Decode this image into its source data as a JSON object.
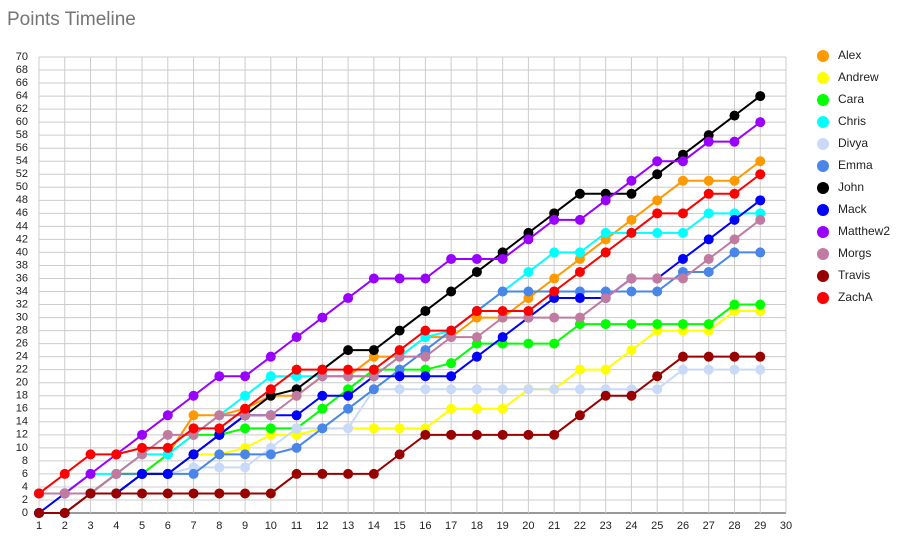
{
  "chart_data": {
    "type": "line",
    "title": "Points Timeline",
    "x": [
      1,
      2,
      3,
      4,
      5,
      6,
      7,
      8,
      9,
      10,
      11,
      12,
      13,
      14,
      15,
      16,
      17,
      18,
      19,
      20,
      21,
      22,
      23,
      24,
      25,
      26,
      27,
      28,
      29
    ],
    "xlim": [
      1,
      30
    ],
    "xticks": [
      1,
      2,
      3,
      4,
      5,
      6,
      7,
      8,
      9,
      10,
      11,
      12,
      13,
      14,
      15,
      16,
      17,
      18,
      19,
      20,
      21,
      22,
      23,
      24,
      25,
      26,
      27,
      28,
      29,
      30
    ],
    "ylim": [
      0,
      70
    ],
    "yticks": [
      0,
      2,
      4,
      6,
      8,
      10,
      12,
      14,
      16,
      18,
      20,
      22,
      24,
      26,
      28,
      30,
      32,
      34,
      36,
      38,
      40,
      42,
      44,
      46,
      48,
      50,
      52,
      54,
      56,
      58,
      60,
      62,
      64,
      66,
      68,
      70
    ],
    "grid": true,
    "legend": "right",
    "series": [
      {
        "name": "Alex",
        "color": "#ff9900",
        "values": [
          3,
          3,
          3,
          6,
          6,
          9,
          15,
          15,
          16,
          18,
          18,
          21,
          21,
          24,
          24,
          27,
          27,
          30,
          30,
          33,
          36,
          39,
          42,
          45,
          48,
          51,
          51,
          51,
          54
        ]
      },
      {
        "name": "Andrew",
        "color": "#ffff00",
        "values": [
          3,
          3,
          3,
          3,
          6,
          6,
          9,
          9,
          10,
          12,
          12,
          13,
          13,
          13,
          13,
          13,
          16,
          16,
          16,
          19,
          19,
          22,
          22,
          25,
          28,
          28,
          28,
          31,
          31
        ]
      },
      {
        "name": "Cara",
        "color": "#00ff00",
        "values": [
          3,
          3,
          3,
          6,
          6,
          9,
          12,
          12,
          13,
          13,
          13,
          16,
          19,
          22,
          22,
          22,
          23,
          26,
          26,
          26,
          26,
          29,
          29,
          29,
          29,
          29,
          29,
          32,
          32
        ]
      },
      {
        "name": "Chris",
        "color": "#00ffff",
        "values": [
          3,
          3,
          6,
          6,
          9,
          9,
          12,
          15,
          18,
          21,
          21,
          21,
          21,
          21,
          24,
          27,
          28,
          31,
          34,
          37,
          40,
          40,
          43,
          43,
          43,
          43,
          46,
          46,
          46
        ]
      },
      {
        "name": "Divya",
        "color": "#c9daf8",
        "values": [
          3,
          3,
          3,
          3,
          6,
          6,
          7,
          7,
          7,
          10,
          13,
          13,
          13,
          19,
          19,
          19,
          19,
          19,
          19,
          19,
          19,
          19,
          19,
          19,
          19,
          22,
          22,
          22,
          22
        ]
      },
      {
        "name": "Emma",
        "color": "#4a86e8",
        "values": [
          3,
          3,
          3,
          6,
          6,
          6,
          6,
          9,
          9,
          9,
          10,
          13,
          16,
          19,
          22,
          25,
          28,
          31,
          34,
          34,
          34,
          34,
          34,
          34,
          34,
          37,
          37,
          40,
          40
        ]
      },
      {
        "name": "John",
        "color": "#000000",
        "values": [
          0,
          0,
          3,
          3,
          6,
          6,
          9,
          12,
          15,
          18,
          19,
          22,
          25,
          25,
          28,
          31,
          34,
          37,
          40,
          43,
          46,
          49,
          49,
          49,
          52,
          55,
          58,
          61,
          64
        ]
      },
      {
        "name": "Mack",
        "color": "#0000ff",
        "values": [
          0,
          3,
          3,
          3,
          6,
          6,
          9,
          12,
          15,
          15,
          15,
          18,
          18,
          21,
          21,
          21,
          21,
          24,
          27,
          30,
          33,
          33,
          33,
          36,
          36,
          39,
          42,
          45,
          48
        ]
      },
      {
        "name": "Matthew2",
        "color": "#9900ff",
        "values": [
          3,
          3,
          6,
          9,
          12,
          15,
          18,
          21,
          21,
          24,
          27,
          30,
          33,
          36,
          36,
          36,
          39,
          39,
          39,
          42,
          45,
          45,
          48,
          51,
          54,
          54,
          57,
          57,
          60
        ]
      },
      {
        "name": "Morgs",
        "color": "#c27ba0",
        "values": [
          3,
          3,
          3,
          6,
          9,
          12,
          12,
          15,
          15,
          15,
          18,
          21,
          21,
          21,
          24,
          24,
          27,
          27,
          30,
          30,
          30,
          30,
          33,
          36,
          36,
          36,
          39,
          42,
          45
        ]
      },
      {
        "name": "Travis",
        "color": "#990000",
        "values": [
          0,
          0,
          3,
          3,
          3,
          3,
          3,
          3,
          3,
          3,
          6,
          6,
          6,
          6,
          9,
          12,
          12,
          12,
          12,
          12,
          12,
          15,
          18,
          18,
          21,
          24,
          24,
          24,
          24
        ]
      },
      {
        "name": "ZachA",
        "color": "#ff0000",
        "values": [
          3,
          6,
          9,
          9,
          10,
          10,
          13,
          13,
          16,
          19,
          22,
          22,
          22,
          22,
          25,
          28,
          28,
          31,
          31,
          31,
          34,
          37,
          40,
          43,
          46,
          46,
          49,
          49,
          52
        ]
      }
    ]
  }
}
